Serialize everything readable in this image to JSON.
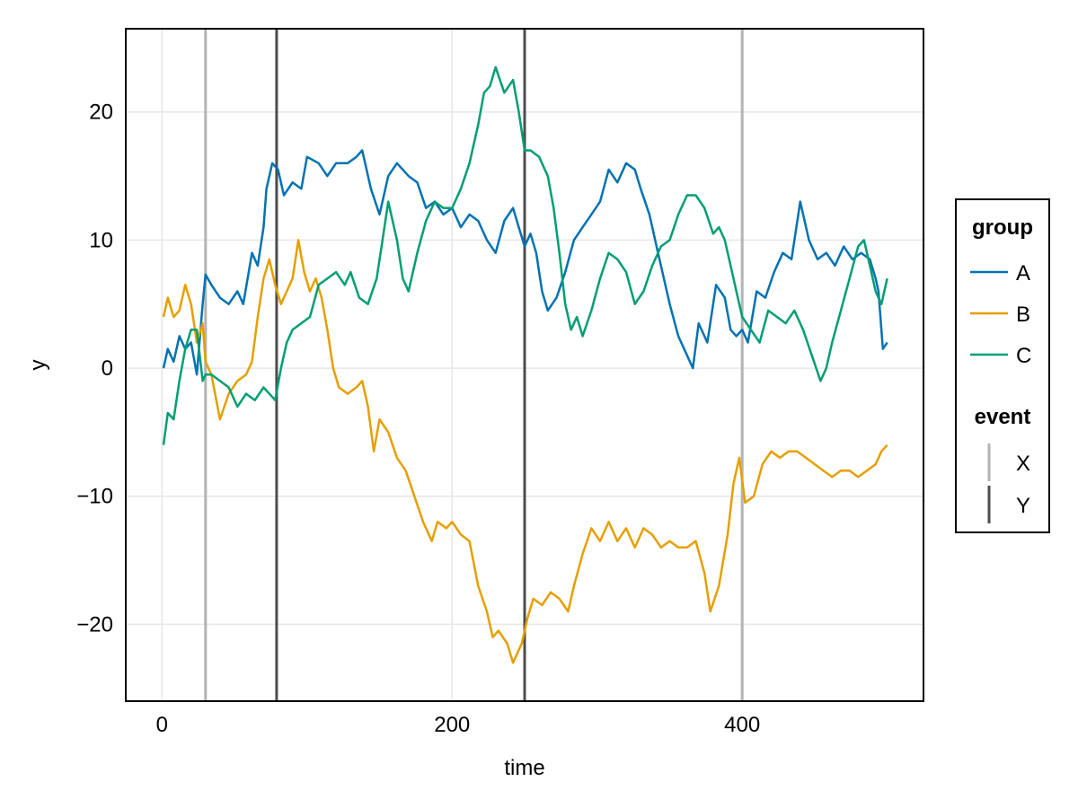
{
  "chart_data": {
    "type": "line",
    "xlabel": "time",
    "ylabel": "y",
    "xlim": [
      -25,
      525
    ],
    "ylim": [
      -26,
      26.5
    ],
    "xticks": [
      0,
      200,
      400
    ],
    "yticks": [
      -20,
      -10,
      0,
      10,
      20
    ],
    "xtick_labels": [
      "0",
      "200",
      "400"
    ],
    "ytick_labels": [
      "−20",
      "−10",
      "0",
      "10",
      "20"
    ],
    "grid": true,
    "legend_position": "right",
    "series": [
      {
        "name": "A",
        "color": "#0072B2",
        "points": [
          [
            1,
            0
          ],
          [
            4,
            1.5
          ],
          [
            8,
            0.5
          ],
          [
            12,
            2.5
          ],
          [
            16,
            1.5
          ],
          [
            20,
            2
          ],
          [
            24,
            -0.5
          ],
          [
            28,
            5
          ],
          [
            30,
            7.3
          ],
          [
            34,
            6.5
          ],
          [
            40,
            5.5
          ],
          [
            46,
            5
          ],
          [
            52,
            6
          ],
          [
            56,
            5
          ],
          [
            62,
            9
          ],
          [
            66,
            8
          ],
          [
            70,
            11
          ],
          [
            72,
            14
          ],
          [
            76,
            16
          ],
          [
            80,
            15.5
          ],
          [
            84,
            13.5
          ],
          [
            90,
            14.5
          ],
          [
            96,
            14
          ],
          [
            100,
            16.5
          ],
          [
            108,
            16
          ],
          [
            114,
            15
          ],
          [
            120,
            16
          ],
          [
            128,
            16
          ],
          [
            134,
            16.5
          ],
          [
            138,
            17
          ],
          [
            144,
            14
          ],
          [
            150,
            12
          ],
          [
            156,
            15
          ],
          [
            162,
            16
          ],
          [
            170,
            15
          ],
          [
            176,
            14.5
          ],
          [
            182,
            12.5
          ],
          [
            188,
            13
          ],
          [
            194,
            12
          ],
          [
            200,
            12.5
          ],
          [
            206,
            11
          ],
          [
            212,
            12
          ],
          [
            218,
            11.5
          ],
          [
            224,
            10
          ],
          [
            230,
            9
          ],
          [
            236,
            11.5
          ],
          [
            242,
            12.5
          ],
          [
            246,
            11
          ],
          [
            250,
            9.5
          ],
          [
            254,
            10.5
          ],
          [
            258,
            9
          ],
          [
            262,
            6
          ],
          [
            266,
            4.5
          ],
          [
            272,
            5.5
          ],
          [
            278,
            7.5
          ],
          [
            284,
            10
          ],
          [
            290,
            11
          ],
          [
            296,
            12
          ],
          [
            302,
            13
          ],
          [
            308,
            15.5
          ],
          [
            314,
            14.5
          ],
          [
            320,
            16
          ],
          [
            326,
            15.5
          ],
          [
            330,
            14
          ],
          [
            336,
            12
          ],
          [
            342,
            9
          ],
          [
            346,
            7
          ],
          [
            350,
            5
          ],
          [
            356,
            2.5
          ],
          [
            362,
            1
          ],
          [
            366,
            0
          ],
          [
            370,
            3.5
          ],
          [
            376,
            2
          ],
          [
            382,
            6.5
          ],
          [
            388,
            5.5
          ],
          [
            392,
            3
          ],
          [
            396,
            2.5
          ],
          [
            400,
            3
          ],
          [
            404,
            2
          ],
          [
            410,
            6
          ],
          [
            416,
            5.5
          ],
          [
            422,
            7.5
          ],
          [
            428,
            9
          ],
          [
            434,
            8.5
          ],
          [
            440,
            13
          ],
          [
            446,
            10
          ],
          [
            452,
            8.5
          ],
          [
            458,
            9
          ],
          [
            464,
            8
          ],
          [
            470,
            9.5
          ],
          [
            476,
            8.5
          ],
          [
            482,
            9
          ],
          [
            488,
            8.5
          ],
          [
            492,
            7
          ],
          [
            494,
            6
          ],
          [
            497,
            1.5
          ],
          [
            500,
            2
          ]
        ]
      },
      {
        "name": "B",
        "color": "#E69F00",
        "points": [
          [
            1,
            4
          ],
          [
            4,
            5.5
          ],
          [
            8,
            4
          ],
          [
            12,
            4.5
          ],
          [
            16,
            6.5
          ],
          [
            20,
            5
          ],
          [
            24,
            2
          ],
          [
            28,
            3.5
          ],
          [
            30,
            0.5
          ],
          [
            34,
            -0.5
          ],
          [
            40,
            -4
          ],
          [
            46,
            -2
          ],
          [
            52,
            -1
          ],
          [
            58,
            -0.5
          ],
          [
            62,
            0.5
          ],
          [
            66,
            4
          ],
          [
            70,
            7
          ],
          [
            74,
            8.5
          ],
          [
            78,
            6.5
          ],
          [
            82,
            5
          ],
          [
            86,
            6
          ],
          [
            90,
            7
          ],
          [
            94,
            10
          ],
          [
            98,
            7.5
          ],
          [
            102,
            6
          ],
          [
            106,
            7
          ],
          [
            110,
            5.5
          ],
          [
            114,
            3
          ],
          [
            118,
            0
          ],
          [
            122,
            -1.5
          ],
          [
            128,
            -2
          ],
          [
            134,
            -1.5
          ],
          [
            138,
            -1
          ],
          [
            142,
            -3
          ],
          [
            146,
            -6.5
          ],
          [
            150,
            -4
          ],
          [
            156,
            -5
          ],
          [
            162,
            -7
          ],
          [
            168,
            -8
          ],
          [
            174,
            -10
          ],
          [
            180,
            -12
          ],
          [
            186,
            -13.5
          ],
          [
            190,
            -12
          ],
          [
            196,
            -12.5
          ],
          [
            200,
            -12
          ],
          [
            206,
            -13
          ],
          [
            212,
            -13.5
          ],
          [
            218,
            -17
          ],
          [
            224,
            -19
          ],
          [
            228,
            -21
          ],
          [
            232,
            -20.5
          ],
          [
            238,
            -21.5
          ],
          [
            242,
            -23
          ],
          [
            248,
            -21.5
          ],
          [
            252,
            -19.5
          ],
          [
            256,
            -18
          ],
          [
            262,
            -18.5
          ],
          [
            268,
            -17.5
          ],
          [
            274,
            -18
          ],
          [
            280,
            -19
          ],
          [
            284,
            -17
          ],
          [
            290,
            -14.5
          ],
          [
            296,
            -12.5
          ],
          [
            302,
            -13.5
          ],
          [
            308,
            -12
          ],
          [
            314,
            -13.5
          ],
          [
            320,
            -12.5
          ],
          [
            326,
            -14
          ],
          [
            332,
            -12.5
          ],
          [
            338,
            -13
          ],
          [
            344,
            -14
          ],
          [
            350,
            -13.5
          ],
          [
            356,
            -14
          ],
          [
            362,
            -14
          ],
          [
            368,
            -13.5
          ],
          [
            374,
            -16
          ],
          [
            378,
            -19
          ],
          [
            384,
            -17
          ],
          [
            390,
            -13
          ],
          [
            394,
            -9
          ],
          [
            398,
            -7
          ],
          [
            402,
            -10.5
          ],
          [
            408,
            -10
          ],
          [
            414,
            -7.5
          ],
          [
            420,
            -6.5
          ],
          [
            426,
            -7
          ],
          [
            432,
            -6.5
          ],
          [
            438,
            -6.5
          ],
          [
            444,
            -7
          ],
          [
            450,
            -7.5
          ],
          [
            456,
            -8
          ],
          [
            462,
            -8.5
          ],
          [
            468,
            -8
          ],
          [
            474,
            -8
          ],
          [
            480,
            -8.5
          ],
          [
            486,
            -8
          ],
          [
            492,
            -7.5
          ],
          [
            496,
            -6.5
          ],
          [
            500,
            -6
          ]
        ]
      },
      {
        "name": "C",
        "color": "#009E73",
        "points": [
          [
            1,
            -6
          ],
          [
            4,
            -3.5
          ],
          [
            8,
            -4
          ],
          [
            12,
            -1
          ],
          [
            16,
            1.5
          ],
          [
            20,
            3
          ],
          [
            24,
            3
          ],
          [
            28,
            -1
          ],
          [
            30,
            -0.5
          ],
          [
            34,
            -0.5
          ],
          [
            40,
            -1
          ],
          [
            46,
            -1.5
          ],
          [
            52,
            -3
          ],
          [
            58,
            -2
          ],
          [
            64,
            -2.5
          ],
          [
            70,
            -1.5
          ],
          [
            74,
            -2
          ],
          [
            78,
            -2.5
          ],
          [
            82,
            0
          ],
          [
            86,
            2
          ],
          [
            90,
            3
          ],
          [
            96,
            3.5
          ],
          [
            102,
            4
          ],
          [
            108,
            6.5
          ],
          [
            114,
            7
          ],
          [
            120,
            7.5
          ],
          [
            126,
            6.5
          ],
          [
            130,
            7.5
          ],
          [
            136,
            5.5
          ],
          [
            142,
            5
          ],
          [
            148,
            7
          ],
          [
            152,
            10
          ],
          [
            156,
            13
          ],
          [
            162,
            10
          ],
          [
            166,
            7
          ],
          [
            170,
            6
          ],
          [
            176,
            9
          ],
          [
            182,
            11.5
          ],
          [
            188,
            13
          ],
          [
            194,
            12.5
          ],
          [
            200,
            12.5
          ],
          [
            206,
            14
          ],
          [
            212,
            16
          ],
          [
            218,
            19
          ],
          [
            222,
            21.5
          ],
          [
            226,
            22
          ],
          [
            230,
            23.5
          ],
          [
            236,
            21.5
          ],
          [
            242,
            22.5
          ],
          [
            246,
            20
          ],
          [
            250,
            17
          ],
          [
            254,
            17
          ],
          [
            260,
            16.5
          ],
          [
            266,
            15
          ],
          [
            270,
            12.5
          ],
          [
            274,
            9
          ],
          [
            278,
            5
          ],
          [
            282,
            3
          ],
          [
            286,
            4
          ],
          [
            290,
            2.5
          ],
          [
            296,
            4.5
          ],
          [
            302,
            7
          ],
          [
            308,
            9
          ],
          [
            314,
            8.5
          ],
          [
            320,
            7.5
          ],
          [
            326,
            5
          ],
          [
            332,
            6
          ],
          [
            338,
            8
          ],
          [
            344,
            9.5
          ],
          [
            350,
            10
          ],
          [
            356,
            12
          ],
          [
            362,
            13.5
          ],
          [
            368,
            13.5
          ],
          [
            374,
            12.5
          ],
          [
            380,
            10.5
          ],
          [
            384,
            11
          ],
          [
            388,
            10
          ],
          [
            392,
            8
          ],
          [
            396,
            6
          ],
          [
            400,
            4
          ],
          [
            406,
            3
          ],
          [
            412,
            2
          ],
          [
            418,
            4.5
          ],
          [
            424,
            4
          ],
          [
            430,
            3.5
          ],
          [
            436,
            4.5
          ],
          [
            442,
            3
          ],
          [
            448,
            1
          ],
          [
            454,
            -1
          ],
          [
            458,
            0
          ],
          [
            462,
            2
          ],
          [
            468,
            4.5
          ],
          [
            474,
            7
          ],
          [
            480,
            9.5
          ],
          [
            484,
            10
          ],
          [
            488,
            8
          ],
          [
            492,
            6
          ],
          [
            496,
            5
          ],
          [
            500,
            7
          ]
        ]
      }
    ],
    "events": [
      {
        "name": "X",
        "color": "#B3B3B3",
        "x": [
          30,
          400
        ]
      },
      {
        "name": "Y",
        "color": "#4D4D4D",
        "x": [
          79,
          250
        ]
      }
    ],
    "legend": {
      "group_title": "group",
      "group_items": [
        "A",
        "B",
        "C"
      ],
      "event_title": "event",
      "event_items": [
        "X",
        "Y"
      ]
    }
  }
}
